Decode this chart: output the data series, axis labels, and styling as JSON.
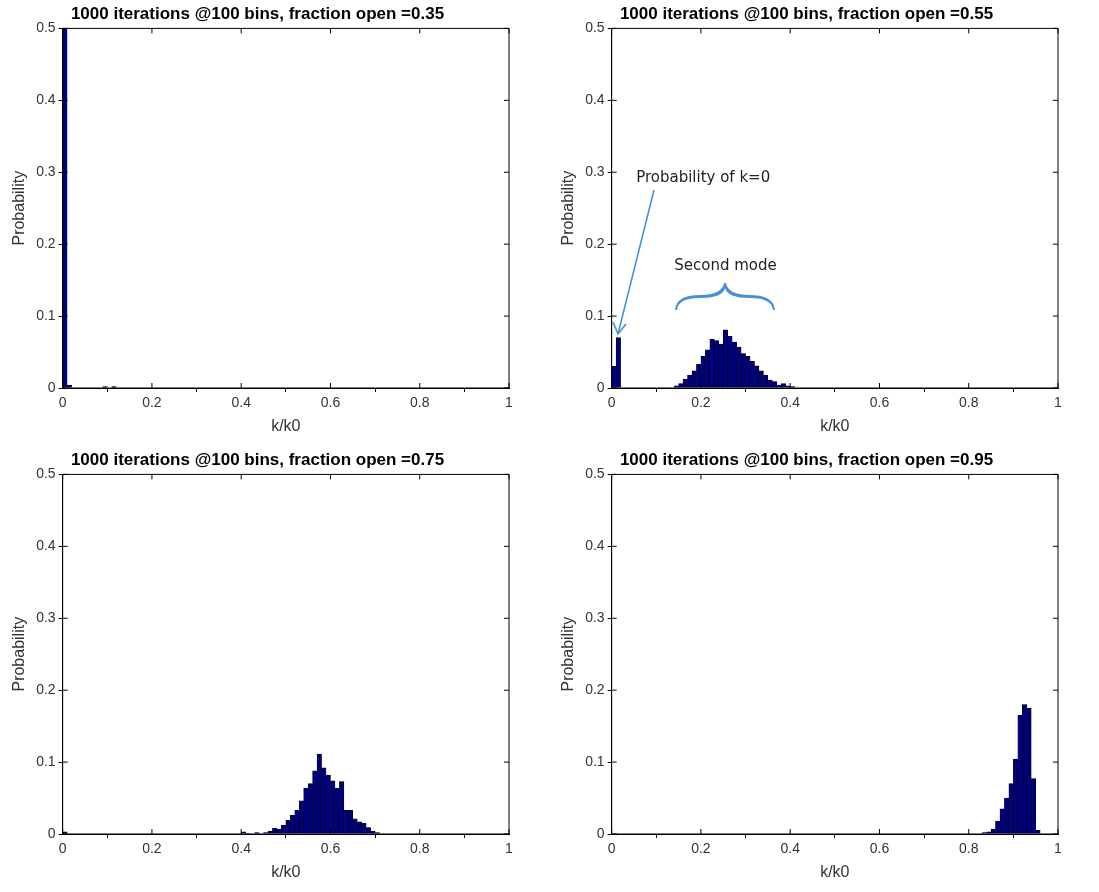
{
  "chart_data": [
    {
      "type": "histogram",
      "title": "1000 iterations @100 bins, fraction open =0.35",
      "xlabel": "k/k0",
      "ylabel": "Probability",
      "color": "#00007f",
      "bins": [
        0,
        0.01,
        0.02,
        0.03,
        0.04,
        0.05,
        0.06,
        0.07,
        0.08,
        0.09,
        0.1,
        0.11,
        0.12
      ],
      "values": [
        0.5,
        0.004,
        0,
        0,
        0,
        0,
        0,
        0,
        0,
        0.002,
        0,
        0.002
      ],
      "xlim": [
        0,
        1
      ],
      "xticks": [
        0,
        0.2,
        0.4,
        0.6,
        0.8,
        1
      ],
      "ylim": [
        0,
        0.5
      ],
      "yticks": [
        0,
        0.1,
        0.2,
        0.3,
        0.4,
        0.5
      ],
      "grid": false,
      "legend": false
    },
    {
      "type": "histogram",
      "title": "1000 iterations @100 bins, fraction open =0.55",
      "xlabel": "k/k0",
      "ylabel": "Probability",
      "color": "#00007f",
      "bins": [
        0,
        0.01,
        0.02,
        0.03,
        0.04,
        0.05,
        0.06,
        0.07,
        0.08,
        0.09,
        0.1,
        0.11,
        0.12,
        0.13,
        0.14,
        0.15,
        0.16,
        0.17,
        0.18,
        0.19,
        0.2,
        0.21,
        0.22,
        0.23,
        0.24,
        0.25,
        0.26,
        0.27,
        0.28,
        0.29,
        0.3,
        0.31,
        0.32,
        0.33,
        0.34,
        0.35,
        0.36,
        0.37,
        0.38,
        0.39,
        0.4,
        0.41
      ],
      "values": [
        0.03,
        0.07,
        0,
        0,
        0,
        0,
        0,
        0,
        0,
        0,
        0,
        0,
        0,
        0,
        0.003,
        0.006,
        0.012,
        0.018,
        0.024,
        0.033,
        0.044,
        0.053,
        0.068,
        0.066,
        0.061,
        0.081,
        0.072,
        0.064,
        0.057,
        0.048,
        0.044,
        0.037,
        0.031,
        0.024,
        0.018,
        0.011,
        0.009,
        0.004,
        0.006,
        0.003,
        0.002
      ],
      "annotations": [
        {
          "text": "Probability of k=0",
          "x": 0.01,
          "y": 0.07
        },
        "Second mode"
      ],
      "xlim": [
        0,
        1
      ],
      "xticks": [
        0,
        0.2,
        0.4,
        0.6,
        0.8,
        1
      ],
      "ylim": [
        0,
        0.5
      ],
      "yticks": [
        0,
        0.1,
        0.2,
        0.3,
        0.4,
        0.5
      ],
      "grid": false,
      "legend": false
    },
    {
      "type": "histogram",
      "title": "1000 iterations @100 bins, fraction open =0.75",
      "xlabel": "k/k0",
      "ylabel": "Probability",
      "color": "#00007f",
      "bins": [
        0,
        0.01,
        0.02,
        0.03,
        0.04,
        0.05,
        0.06,
        0.07,
        0.08,
        0.09,
        0.1,
        0.11,
        0.12,
        0.13,
        0.14,
        0.15,
        0.16,
        0.17,
        0.18,
        0.19,
        0.2,
        0.21,
        0.22,
        0.23,
        0.24,
        0.25,
        0.26,
        0.27,
        0.28,
        0.29,
        0.3,
        0.31,
        0.32,
        0.33,
        0.34,
        0.35,
        0.36,
        0.37,
        0.38,
        0.39,
        0.4,
        0.41,
        0.42,
        0.43,
        0.44,
        0.45,
        0.46,
        0.47,
        0.48,
        0.49,
        0.5,
        0.51,
        0.52,
        0.53,
        0.54,
        0.55,
        0.56,
        0.57,
        0.58,
        0.59,
        0.6,
        0.61,
        0.62,
        0.63,
        0.64,
        0.65,
        0.66,
        0.67,
        0.68,
        0.69,
        0.7,
        0.71
      ],
      "values": [
        0.003,
        0,
        0,
        0,
        0,
        0,
        0,
        0,
        0,
        0,
        0,
        0,
        0,
        0,
        0,
        0,
        0,
        0,
        0,
        0,
        0,
        0,
        0,
        0,
        0,
        0,
        0,
        0,
        0,
        0,
        0,
        0,
        0,
        0,
        0,
        0,
        0,
        0,
        0,
        0,
        0.003,
        0.001,
        0,
        0.002,
        0,
        0.002,
        0.004,
        0.008,
        0.007,
        0.012,
        0.019,
        0.026,
        0.033,
        0.046,
        0.064,
        0.07,
        0.088,
        0.111,
        0.092,
        0.082,
        0.074,
        0.064,
        0.073,
        0.033,
        0.033,
        0.021,
        0.017,
        0.015,
        0.009,
        0.004,
        0.002
      ],
      "xlim": [
        0,
        1
      ],
      "xticks": [
        0,
        0.2,
        0.4,
        0.6,
        0.8,
        1
      ],
      "ylim": [
        0,
        0.5
      ],
      "yticks": [
        0,
        0.1,
        0.2,
        0.3,
        0.4,
        0.5
      ],
      "grid": false,
      "legend": false
    },
    {
      "type": "histogram",
      "title": "1000 iterations @100 bins, fraction open =0.95",
      "xlabel": "k/k0",
      "ylabel": "Probability",
      "color": "#00007f",
      "bins": [
        0.83,
        0.84,
        0.85,
        0.86,
        0.87,
        0.88,
        0.89,
        0.9,
        0.91,
        0.92,
        0.93,
        0.94,
        0.95,
        0.96
      ],
      "values": [
        0.002,
        0.003,
        0.007,
        0.018,
        0.035,
        0.05,
        0.07,
        0.104,
        0.165,
        0.18,
        0.175,
        0.077,
        0.005
      ],
      "xlim": [
        0,
        1
      ],
      "xticks": [
        0,
        0.2,
        0.4,
        0.6,
        0.8,
        1
      ],
      "ylim": [
        0,
        0.5
      ],
      "yticks": [
        0,
        0.1,
        0.2,
        0.3,
        0.4,
        0.5
      ],
      "grid": false,
      "legend": false
    }
  ]
}
